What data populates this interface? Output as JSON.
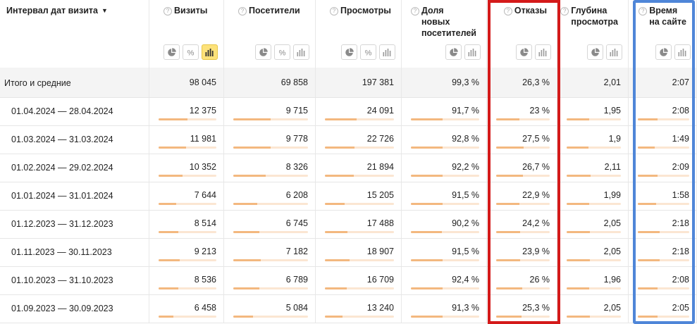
{
  "header": {
    "date_col": "Интервал дат визита",
    "sort_arrow": "▼",
    "columns": [
      {
        "key": "visits",
        "title": [
          "Визиты"
        ],
        "buttons": [
          "pie-chart-icon",
          "percent-icon",
          "bar-chart-icon"
        ],
        "active": 2
      },
      {
        "key": "visitors",
        "title": [
          "Посетители"
        ],
        "buttons": [
          "pie-chart-icon",
          "percent-icon",
          "bar-chart-icon"
        ],
        "active": -1
      },
      {
        "key": "views",
        "title": [
          "Просмотры"
        ],
        "buttons": [
          "pie-chart-icon",
          "percent-icon",
          "bar-chart-icon"
        ],
        "active": -1
      },
      {
        "key": "new_share",
        "title": [
          "Доля",
          "новых",
          "посетителей"
        ],
        "buttons": [
          "pie-chart-icon",
          "bar-chart-icon"
        ],
        "active": -1
      },
      {
        "key": "bounces",
        "title": [
          "Отказы"
        ],
        "buttons": [
          "pie-chart-icon",
          "bar-chart-icon"
        ],
        "active": -1
      },
      {
        "key": "depth",
        "title": [
          "Глубина",
          "просмотра"
        ],
        "buttons": [
          "pie-chart-icon",
          "bar-chart-icon"
        ],
        "active": -1
      },
      {
        "key": "time",
        "title": [
          "Время",
          "на сайте"
        ],
        "buttons": [
          "pie-chart-icon",
          "bar-chart-icon"
        ],
        "active": -1
      }
    ]
  },
  "total": {
    "label": "Итого и средние",
    "values": [
      "98 045",
      "69 858",
      "197 381",
      "99,3 %",
      "26,3 %",
      "2,01",
      "2:07"
    ]
  },
  "rows": [
    {
      "label": "01.04.2024 — 28.04.2024",
      "values": [
        "12 375",
        "9 715",
        "24 091",
        "91,7 %",
        "23 %",
        "1,95",
        "2:08"
      ],
      "fill": [
        0.5,
        0.5,
        0.46,
        0.46,
        0.43,
        0.41,
        0.38
      ]
    },
    {
      "label": "01.03.2024 — 31.03.2024",
      "values": [
        "11 981",
        "9 778",
        "22 726",
        "92,8 %",
        "27,5 %",
        "1,9",
        "1:49"
      ],
      "fill": [
        0.48,
        0.5,
        0.43,
        0.46,
        0.51,
        0.4,
        0.33
      ]
    },
    {
      "label": "01.02.2024 — 29.02.2024",
      "values": [
        "10 352",
        "8 326",
        "21 894",
        "92,2 %",
        "26,7 %",
        "2,11",
        "2:09"
      ],
      "fill": [
        0.42,
        0.43,
        0.42,
        0.46,
        0.5,
        0.44,
        0.39
      ]
    },
    {
      "label": "01.01.2024 — 31.01.2024",
      "values": [
        "7 644",
        "6 208",
        "15 205",
        "91,5 %",
        "22,9 %",
        "1,99",
        "1:58"
      ],
      "fill": [
        0.31,
        0.32,
        0.29,
        0.46,
        0.43,
        0.42,
        0.36
      ]
    },
    {
      "label": "01.12.2023 — 31.12.2023",
      "values": [
        "8 514",
        "6 745",
        "17 488",
        "90,2 %",
        "24,2 %",
        "2,05",
        "2:18"
      ],
      "fill": [
        0.34,
        0.35,
        0.33,
        0.45,
        0.45,
        0.43,
        0.42
      ]
    },
    {
      "label": "01.11.2023 — 30.11.2023",
      "values": [
        "9 213",
        "7 182",
        "18 907",
        "91,5 %",
        "23,9 %",
        "2,05",
        "2:18"
      ],
      "fill": [
        0.37,
        0.37,
        0.36,
        0.46,
        0.45,
        0.43,
        0.42
      ]
    },
    {
      "label": "01.10.2023 — 31.10.2023",
      "values": [
        "8 536",
        "6 789",
        "16 709",
        "92,4 %",
        "26 %",
        "1,96",
        "2:08"
      ],
      "fill": [
        0.34,
        0.35,
        0.32,
        0.46,
        0.49,
        0.41,
        0.38
      ]
    },
    {
      "label": "01.09.2023 — 30.09.2023",
      "values": [
        "6 458",
        "5 084",
        "13 240",
        "91,3 %",
        "25,3 %",
        "2,05",
        "2:05"
      ],
      "fill": [
        0.26,
        0.26,
        0.25,
        0.46,
        0.47,
        0.43,
        0.38
      ]
    }
  ],
  "colors": {
    "bar_fill": "#f3b87f",
    "bar_track": "#fbe6d2",
    "active_button": "#fde27a",
    "bounces_highlight": "#d41a1a",
    "time_highlight": "#4f86d8",
    "total_row_bg": "#f4f4f4"
  }
}
